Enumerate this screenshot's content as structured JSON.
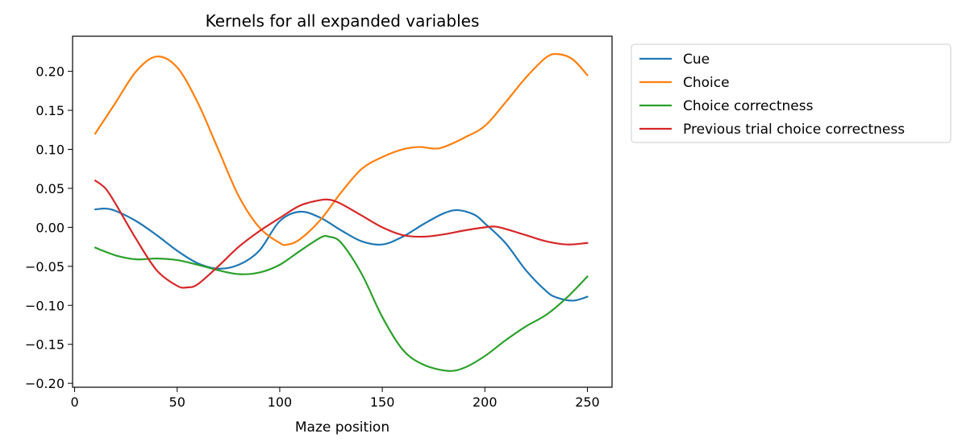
{
  "chart_data": {
    "type": "line",
    "title": "Kernels for all expanded variables",
    "xlabel": "Maze position",
    "ylabel": "",
    "xlim": [
      -1,
      262
    ],
    "ylim": [
      -0.205,
      0.245
    ],
    "xticks": [
      0,
      50,
      100,
      150,
      200,
      250
    ],
    "yticks": [
      -0.2,
      -0.15,
      -0.1,
      -0.05,
      0.0,
      0.05,
      0.1,
      0.15,
      0.2
    ],
    "ytick_labels": [
      "−0.20",
      "−0.15",
      "−0.10",
      "−0.05",
      "0.00",
      "0.05",
      "0.10",
      "0.15",
      "0.20"
    ],
    "grid": false,
    "legend": {
      "placement": "outside-upper-right"
    },
    "series": [
      {
        "name": "Cue",
        "color": "#1f77b4",
        "x": [
          10,
          15,
          20,
          30,
          40,
          50,
          60,
          70,
          80,
          90,
          100,
          110,
          120,
          130,
          140,
          150,
          160,
          170,
          180,
          187,
          195,
          200,
          210,
          220,
          230,
          235,
          243,
          250
        ],
        "y": [
          0.023,
          0.024,
          0.021,
          0.008,
          -0.01,
          -0.03,
          -0.046,
          -0.053,
          -0.048,
          -0.03,
          0.008,
          0.02,
          0.012,
          -0.004,
          -0.018,
          -0.022,
          -0.012,
          0.004,
          0.018,
          0.022,
          0.016,
          0.005,
          -0.02,
          -0.055,
          -0.082,
          -0.09,
          -0.094,
          -0.089
        ]
      },
      {
        "name": "Choice",
        "color": "#ff7f0e",
        "x": [
          10,
          20,
          30,
          40,
          50,
          60,
          70,
          80,
          90,
          100,
          104,
          110,
          120,
          130,
          140,
          150,
          160,
          168,
          175,
          180,
          190,
          200,
          210,
          220,
          230,
          236,
          243,
          250
        ],
        "y": [
          0.12,
          0.16,
          0.2,
          0.219,
          0.205,
          0.16,
          0.1,
          0.04,
          0.0,
          -0.02,
          -0.022,
          -0.015,
          0.01,
          0.045,
          0.075,
          0.09,
          0.1,
          0.103,
          0.101,
          0.103,
          0.115,
          0.13,
          0.16,
          0.192,
          0.218,
          0.222,
          0.215,
          0.195
        ]
      },
      {
        "name": "Choice correctness",
        "color": "#2ca02c",
        "x": [
          10,
          20,
          30,
          40,
          50,
          60,
          70,
          80,
          90,
          100,
          110,
          120,
          124,
          130,
          140,
          150,
          160,
          170,
          182,
          190,
          200,
          210,
          220,
          230,
          240,
          250
        ],
        "y": [
          -0.026,
          -0.036,
          -0.041,
          -0.04,
          -0.042,
          -0.048,
          -0.055,
          -0.06,
          -0.058,
          -0.048,
          -0.03,
          -0.013,
          -0.012,
          -0.02,
          -0.06,
          -0.115,
          -0.157,
          -0.176,
          -0.184,
          -0.18,
          -0.165,
          -0.145,
          -0.127,
          -0.112,
          -0.09,
          -0.063
        ]
      },
      {
        "name": "Previous trial choice correctness",
        "color": "#d62728",
        "x": [
          10,
          15,
          20,
          30,
          40,
          50,
          55,
          60,
          70,
          80,
          90,
          100,
          110,
          120,
          125,
          130,
          140,
          150,
          160,
          170,
          180,
          190,
          200,
          205,
          210,
          220,
          230,
          240,
          250
        ],
        "y": [
          0.06,
          0.05,
          0.03,
          -0.015,
          -0.055,
          -0.075,
          -0.077,
          -0.073,
          -0.05,
          -0.025,
          -0.005,
          0.012,
          0.028,
          0.035,
          0.035,
          0.03,
          0.015,
          0.0,
          -0.01,
          -0.012,
          -0.009,
          -0.004,
          0.0,
          0.001,
          -0.002,
          -0.01,
          -0.018,
          -0.022,
          -0.02
        ]
      }
    ]
  }
}
